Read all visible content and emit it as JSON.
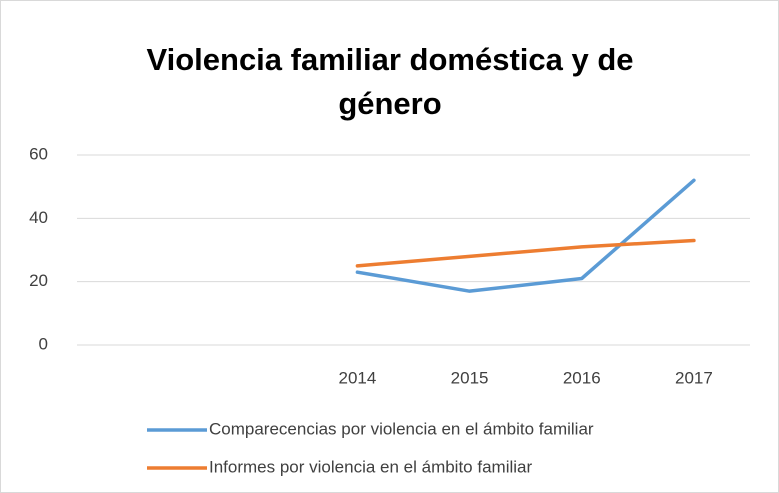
{
  "chart_data": {
    "type": "line",
    "title": "Violencia familiar doméstica y de género",
    "categories": [
      null,
      null,
      "2014",
      "2015",
      "2016",
      "2017"
    ],
    "series": [
      {
        "name": "Comparecencias por violencia en el ámbito familiar",
        "color": "#5b9bd5",
        "values": [
          null,
          null,
          23,
          17,
          21,
          52
        ]
      },
      {
        "name": "Informes por violencia en el ámbito familiar",
        "color": "#ed7d31",
        "values": [
          null,
          null,
          25,
          28,
          31,
          33
        ]
      }
    ],
    "ylim": [
      0,
      60
    ],
    "yticks": [
      0,
      20,
      40,
      60
    ],
    "grid": true,
    "legend": "bottom"
  }
}
